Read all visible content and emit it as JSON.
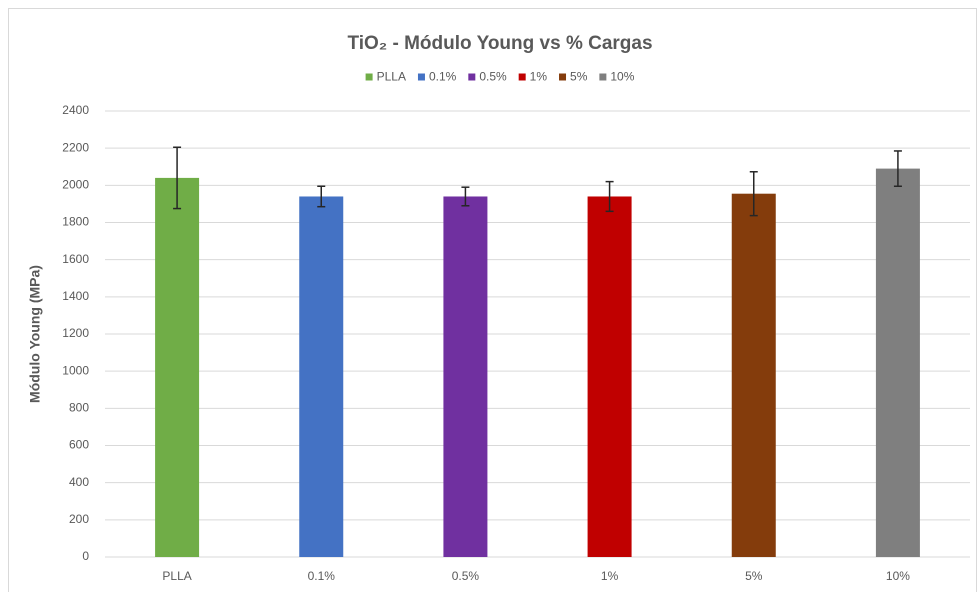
{
  "chart_data": {
    "type": "bar",
    "title": "TiO₂ - Módulo Young vs % Cargas",
    "y_label": "Módulo Young (MPa)",
    "categories": [
      "PLLA",
      "0.1%",
      "0.5%",
      "1%",
      "5%",
      "10%"
    ],
    "values": [
      2040,
      1940,
      1940,
      1940,
      1955,
      2090
    ],
    "errors": [
      165,
      55,
      50,
      80,
      118,
      95
    ],
    "colors": [
      "#70ad47",
      "#4472c4",
      "#7030a0",
      "#c00000",
      "#843c0c",
      "#7f7f7f"
    ],
    "ylim": [
      0,
      2400
    ],
    "yticks": [
      0,
      200,
      400,
      600,
      800,
      1000,
      1200,
      1400,
      1600,
      1800,
      2000,
      2200,
      2400
    ],
    "grid": true,
    "legend": "top"
  }
}
